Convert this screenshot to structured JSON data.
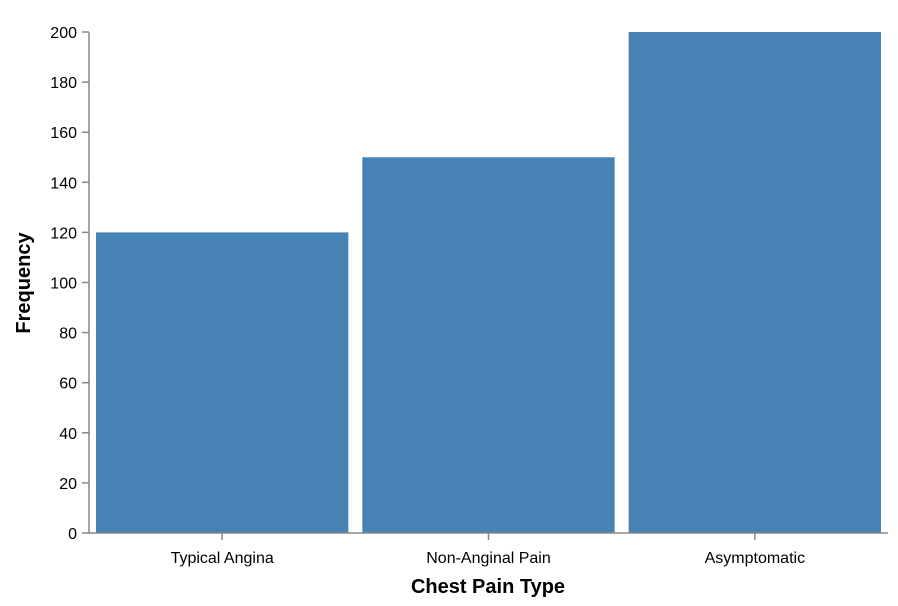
{
  "chart_data": {
    "type": "bar",
    "categories": [
      "Typical Angina",
      "Non-Anginal Pain",
      "Asymptomatic"
    ],
    "values": [
      120,
      150,
      200
    ],
    "xlabel": "Chest Pain Type",
    "ylabel": "Frequency",
    "ylim": [
      0,
      200
    ],
    "yticks": [
      0,
      20,
      40,
      60,
      80,
      100,
      120,
      140,
      160,
      180,
      200
    ],
    "grid": false,
    "bar_color": "#4682b4"
  }
}
